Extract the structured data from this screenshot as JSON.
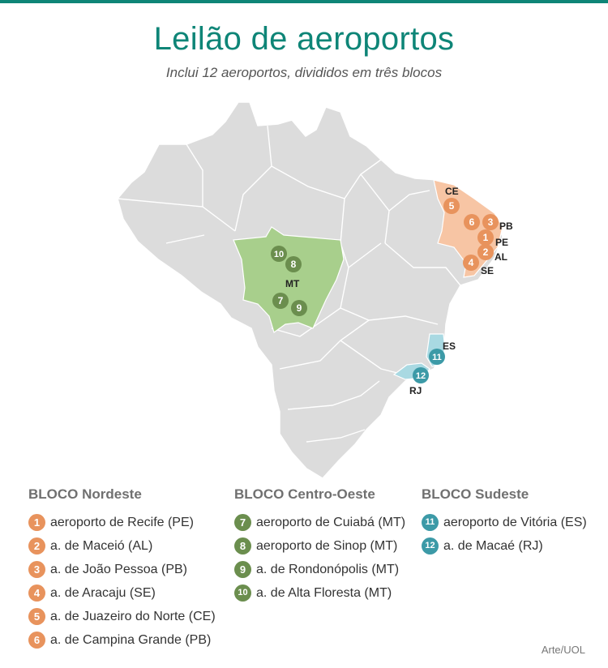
{
  "header": {
    "title": "Leilão de aeroportos",
    "subtitle": "Inclui 12 aeroportos, divididos em três blocos"
  },
  "colors": {
    "accent": "#0e8577",
    "map_base": "#dcdcdc",
    "nordeste_fill": "#f7c5a4",
    "nordeste_marker": "#e8935d",
    "centro_oeste_fill": "#a8cf8c",
    "centro_oeste_marker": "#6b8e4e",
    "sudeste_fill": "#a9d9e2",
    "sudeste_marker": "#3c9aa7"
  },
  "map": {
    "state_labels": {
      "ce": "CE",
      "pb": "PB",
      "pe": "PE",
      "al": "AL",
      "se": "SE",
      "mt": "MT",
      "es": "ES",
      "rj": "RJ"
    },
    "markers": {
      "m1": "1",
      "m2": "2",
      "m3": "3",
      "m4": "4",
      "m5": "5",
      "m6": "6",
      "m7": "7",
      "m8": "8",
      "m9": "9",
      "m10": "10",
      "m11": "11",
      "m12": "12"
    }
  },
  "legend": {
    "nordeste": {
      "title": "BLOCO Nordeste",
      "items": [
        {
          "num": "1",
          "label": "aeroporto de Recife (PE)"
        },
        {
          "num": "2",
          "label": "a. de Maceió (AL)"
        },
        {
          "num": "3",
          "label": "a. de João Pessoa (PB)"
        },
        {
          "num": "4",
          "label": "a. de Aracaju (SE)"
        },
        {
          "num": "5",
          "label": "a. de Juazeiro do Norte (CE)"
        },
        {
          "num": "6",
          "label": "a. de Campina Grande (PB)"
        }
      ]
    },
    "centro_oeste": {
      "title": "BLOCO Centro-Oeste",
      "items": [
        {
          "num": "7",
          "label": "aeroporto de Cuiabá (MT)"
        },
        {
          "num": "8",
          "label": "aeroporto de Sinop (MT)"
        },
        {
          "num": "9",
          "label": "a. de Rondonópolis (MT)"
        },
        {
          "num": "10",
          "label": "a. de Alta Floresta (MT)"
        }
      ]
    },
    "sudeste": {
      "title": "BLOCO Sudeste",
      "items": [
        {
          "num": "11",
          "label": "aeroporto de Vitória (ES)"
        },
        {
          "num": "12",
          "label": "a. de Macaé (RJ)"
        }
      ]
    }
  },
  "credit": "Arte/UOL"
}
